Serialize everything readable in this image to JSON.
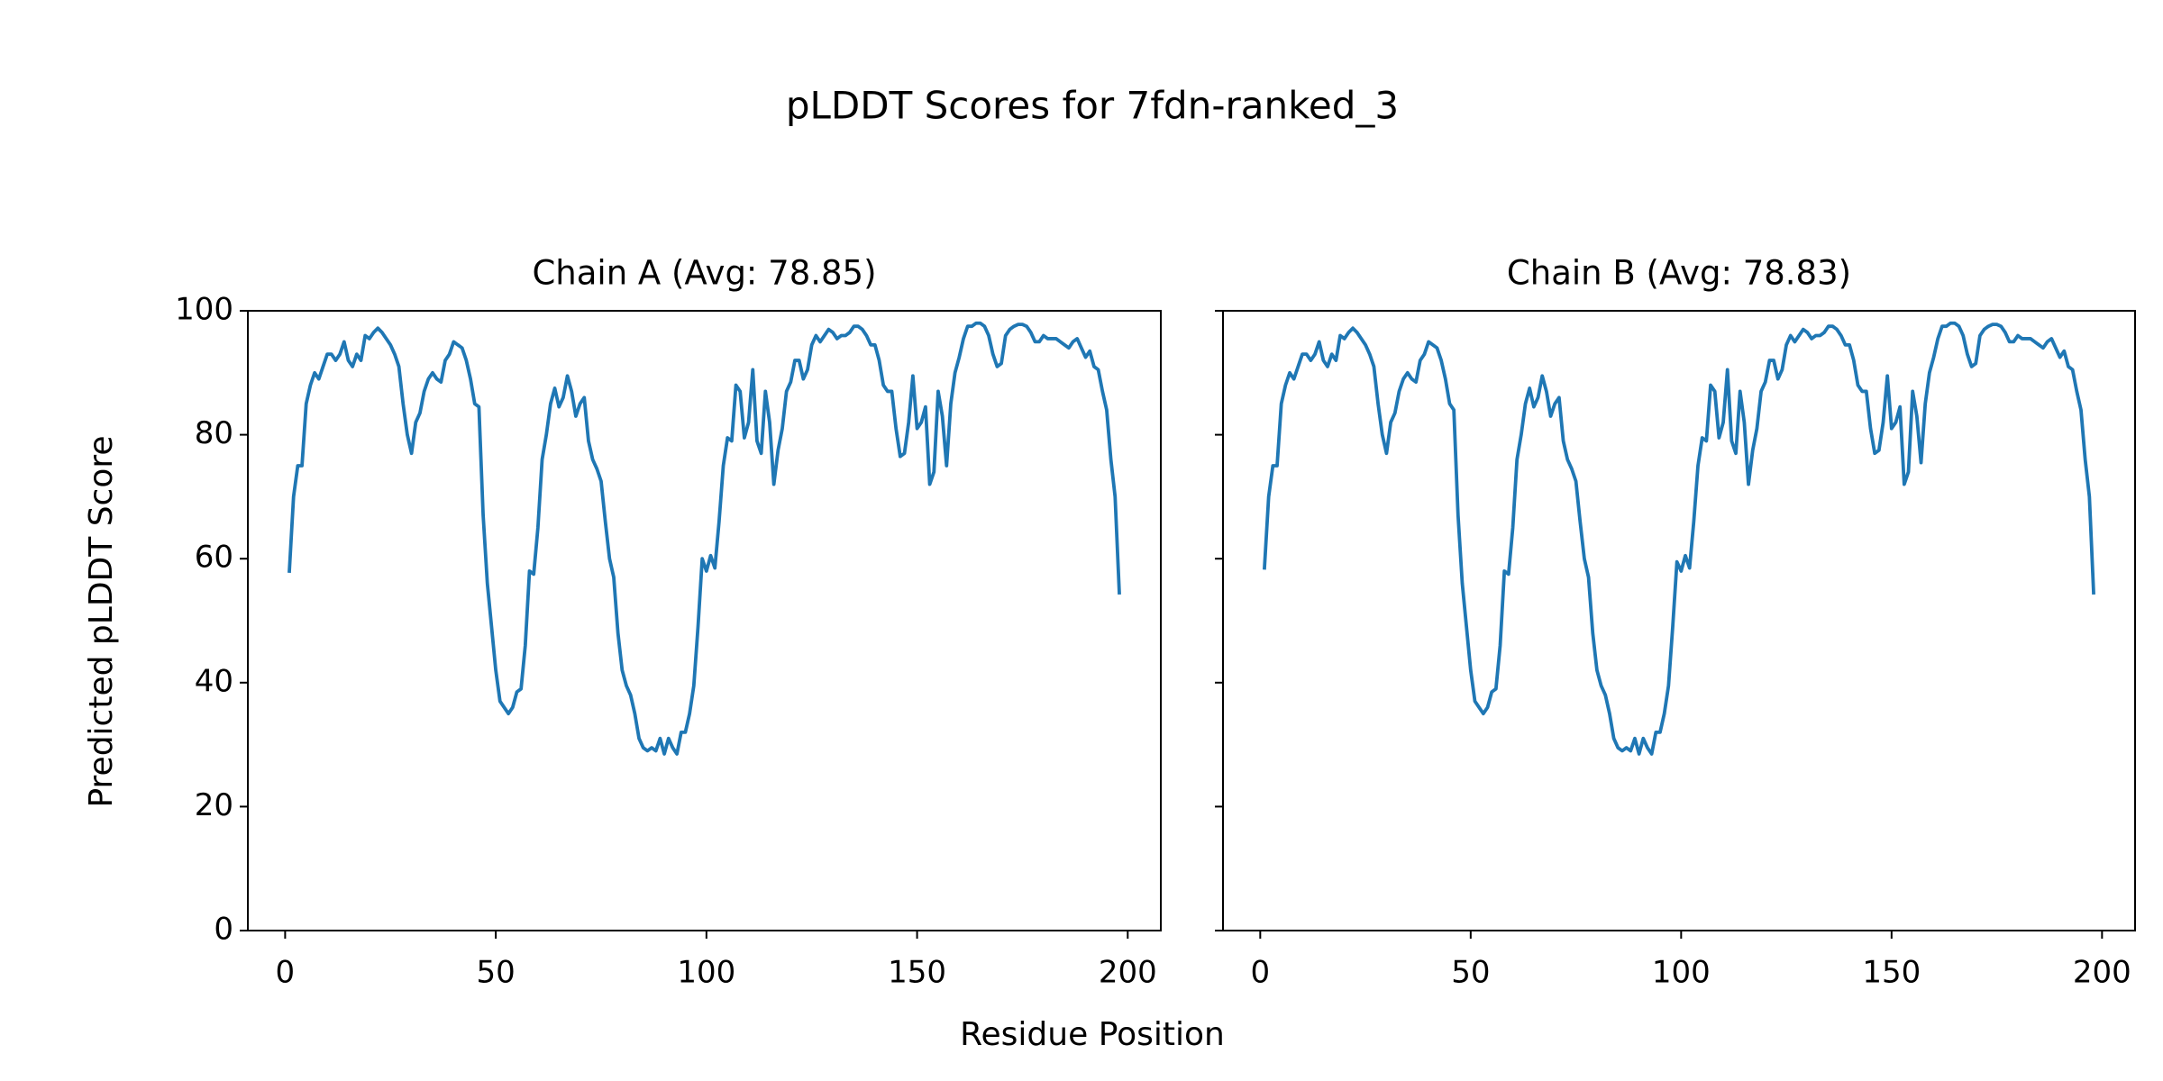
{
  "title": "pLDDT Scores for 7fdn-ranked_3",
  "x_label": "Residue Position",
  "y_label": "Predicted pLDDT Score",
  "chart_data": [
    {
      "type": "line",
      "title": "Chain A (Avg: 78.85)",
      "color": "#1f77b4",
      "xlim": [
        -8.85,
        207.85
      ],
      "ylim": [
        0,
        100
      ],
      "xticks": [
        0,
        50,
        100,
        150,
        200
      ],
      "yticks": [
        0,
        20,
        40,
        60,
        80,
        100
      ],
      "x": [
        1,
        2,
        3,
        4,
        5,
        6,
        7,
        8,
        9,
        10,
        11,
        12,
        13,
        14,
        15,
        16,
        17,
        18,
        19,
        20,
        21,
        22,
        23,
        24,
        25,
        26,
        27,
        28,
        29,
        30,
        31,
        32,
        33,
        34,
        35,
        36,
        37,
        38,
        39,
        40,
        41,
        42,
        43,
        44,
        45,
        46,
        47,
        48,
        49,
        50,
        51,
        52,
        53,
        54,
        55,
        56,
        57,
        58,
        59,
        60,
        61,
        62,
        63,
        64,
        65,
        66,
        67,
        68,
        69,
        70,
        71,
        72,
        73,
        74,
        75,
        76,
        77,
        78,
        79,
        80,
        81,
        82,
        83,
        84,
        85,
        86,
        87,
        88,
        89,
        90,
        91,
        92,
        93,
        94,
        95,
        96,
        97,
        98,
        99,
        100,
        101,
        102,
        103,
        104,
        105,
        106,
        107,
        108,
        109,
        110,
        111,
        112,
        113,
        114,
        115,
        116,
        117,
        118,
        119,
        120,
        121,
        122,
        123,
        124,
        125,
        126,
        127,
        128,
        129,
        130,
        131,
        132,
        133,
        134,
        135,
        136,
        137,
        138,
        139,
        140,
        141,
        142,
        143,
        144,
        145,
        146,
        147,
        148,
        149,
        150,
        151,
        152,
        153,
        154,
        155,
        156,
        157,
        158,
        159,
        160,
        161,
        162,
        163,
        164,
        165,
        166,
        167,
        168,
        169,
        170,
        171,
        172,
        173,
        174,
        175,
        176,
        177,
        178,
        179,
        180,
        181,
        182,
        183,
        184,
        185,
        186,
        187,
        188,
        189,
        190,
        191,
        192,
        193,
        194,
        195,
        196,
        197,
        198
      ],
      "values": [
        58,
        70,
        75,
        75,
        85,
        88,
        90,
        89,
        91,
        93,
        93,
        92,
        93,
        95,
        92,
        91,
        93,
        92,
        96,
        95.5,
        96.5,
        97.2,
        96.5,
        95.5,
        94.5,
        93,
        91,
        85,
        80,
        77,
        82,
        83.5,
        87,
        89,
        90,
        89,
        88.5,
        92,
        93,
        95,
        94.5,
        94,
        92,
        89,
        85,
        84.5,
        67,
        56,
        49,
        42,
        37,
        36,
        35,
        36,
        38.5,
        39,
        46,
        58,
        57.5,
        65,
        76,
        80,
        85,
        87.5,
        84.5,
        86,
        89.5,
        87,
        83,
        85,
        86,
        79,
        76,
        74.5,
        72.5,
        66,
        60,
        57,
        48,
        42,
        39.5,
        38,
        35,
        31,
        29.5,
        29,
        29.5,
        29,
        31,
        28.5,
        31,
        29.5,
        28.5,
        32,
        32,
        35,
        39.5,
        49,
        60,
        58,
        60.5,
        58.5,
        66,
        75,
        79.5,
        79,
        88,
        87,
        79.5,
        82,
        90.5,
        79,
        77,
        87,
        82,
        72,
        77.5,
        81,
        87,
        88.5,
        92,
        92,
        89,
        90.5,
        94.5,
        96,
        95,
        96,
        97,
        96.5,
        95.5,
        96,
        96,
        96.5,
        97.5,
        97.5,
        97,
        96,
        94.5,
        94.5,
        92,
        88,
        87,
        87,
        81,
        76.5,
        77,
        82,
        89.5,
        81,
        82,
        84.5,
        72,
        74,
        87,
        83,
        75,
        85,
        90,
        92.5,
        95.5,
        97.5,
        97.5,
        98,
        98,
        97.5,
        96,
        93,
        91,
        91.5,
        96,
        97,
        97.5,
        97.8,
        97.8,
        97.5,
        96.5,
        95,
        95,
        96,
        95.5,
        95.5,
        95.5,
        95,
        94.5,
        94,
        95,
        95.5,
        94,
        92.5,
        93.5,
        91,
        90.5,
        87,
        84,
        76,
        70,
        54.5
      ]
    },
    {
      "type": "line",
      "title": "Chain B (Avg: 78.83)",
      "color": "#1f77b4",
      "show_ytick_labels": false,
      "xlim": [
        -8.85,
        207.85
      ],
      "ylim": [
        0,
        100
      ],
      "xticks": [
        0,
        50,
        100,
        150,
        200
      ],
      "yticks": [
        0,
        20,
        40,
        60,
        80,
        100
      ],
      "x": [
        1,
        2,
        3,
        4,
        5,
        6,
        7,
        8,
        9,
        10,
        11,
        12,
        13,
        14,
        15,
        16,
        17,
        18,
        19,
        20,
        21,
        22,
        23,
        24,
        25,
        26,
        27,
        28,
        29,
        30,
        31,
        32,
        33,
        34,
        35,
        36,
        37,
        38,
        39,
        40,
        41,
        42,
        43,
        44,
        45,
        46,
        47,
        48,
        49,
        50,
        51,
        52,
        53,
        54,
        55,
        56,
        57,
        58,
        59,
        60,
        61,
        62,
        63,
        64,
        65,
        66,
        67,
        68,
        69,
        70,
        71,
        72,
        73,
        74,
        75,
        76,
        77,
        78,
        79,
        80,
        81,
        82,
        83,
        84,
        85,
        86,
        87,
        88,
        89,
        90,
        91,
        92,
        93,
        94,
        95,
        96,
        97,
        98,
        99,
        100,
        101,
        102,
        103,
        104,
        105,
        106,
        107,
        108,
        109,
        110,
        111,
        112,
        113,
        114,
        115,
        116,
        117,
        118,
        119,
        120,
        121,
        122,
        123,
        124,
        125,
        126,
        127,
        128,
        129,
        130,
        131,
        132,
        133,
        134,
        135,
        136,
        137,
        138,
        139,
        140,
        141,
        142,
        143,
        144,
        145,
        146,
        147,
        148,
        149,
        150,
        151,
        152,
        153,
        154,
        155,
        156,
        157,
        158,
        159,
        160,
        161,
        162,
        163,
        164,
        165,
        166,
        167,
        168,
        169,
        170,
        171,
        172,
        173,
        174,
        175,
        176,
        177,
        178,
        179,
        180,
        181,
        182,
        183,
        184,
        185,
        186,
        187,
        188,
        189,
        190,
        191,
        192,
        193,
        194,
        195,
        196,
        197,
        198
      ],
      "values": [
        58.5,
        70,
        75,
        75,
        85,
        88,
        90,
        89,
        91,
        93,
        93,
        92,
        93,
        95,
        92,
        91,
        93,
        92,
        96,
        95.5,
        96.5,
        97.2,
        96.5,
        95.5,
        94.5,
        93,
        91,
        85,
        80,
        77,
        82,
        83.5,
        87,
        89,
        90,
        89,
        88.5,
        92,
        93,
        95,
        94.5,
        94,
        92,
        89,
        85,
        84,
        67,
        56,
        49,
        42,
        37,
        36,
        35,
        36,
        38.5,
        39,
        46,
        58,
        57.5,
        65,
        76,
        80,
        85,
        87.5,
        84.5,
        86,
        89.5,
        87,
        83,
        85,
        86,
        79,
        76,
        74.5,
        72.5,
        66,
        60,
        57,
        48,
        42,
        39.5,
        38,
        35,
        31,
        29.5,
        29,
        29.5,
        29,
        31,
        28.5,
        31,
        29.5,
        28.5,
        32,
        32,
        35,
        39.5,
        49,
        59.5,
        58,
        60.5,
        58.5,
        66,
        75,
        79.5,
        79,
        88,
        87,
        79.5,
        82,
        90.5,
        79,
        77,
        87,
        82,
        72,
        77.5,
        81,
        87,
        88.5,
        92,
        92,
        89,
        90.5,
        94.5,
        96,
        95,
        96,
        97,
        96.5,
        95.5,
        96,
        96,
        96.5,
        97.5,
        97.5,
        97,
        96,
        94.5,
        94.5,
        92,
        88,
        87,
        87,
        81,
        77,
        77.5,
        82,
        89.5,
        81,
        82,
        84.5,
        72,
        74,
        87,
        83,
        75.5,
        85,
        90,
        92.5,
        95.5,
        97.5,
        97.5,
        98,
        98,
        97.5,
        96,
        93,
        91,
        91.5,
        96,
        97,
        97.5,
        97.8,
        97.8,
        97.5,
        96.5,
        95,
        95,
        96,
        95.5,
        95.5,
        95.5,
        95,
        94.5,
        94,
        95,
        95.5,
        94,
        92.5,
        93.5,
        91,
        90.5,
        87,
        84,
        76,
        70,
        54.5
      ]
    }
  ]
}
